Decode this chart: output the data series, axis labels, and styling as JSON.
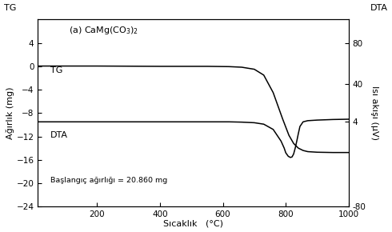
{
  "title_text": "(a) CaMg(CO$_3$)$_2$",
  "xlabel": "Sıcaklık",
  "xlabel_unit": "(°C)",
  "ylabel_left": "Ağırlık (mg)",
  "ylabel_right": "Isı akışı (μV)",
  "label_tg_left": "TG",
  "label_dta_left": "DTA",
  "label_tg_top": "TG",
  "label_dta_top": "DTA",
  "annotation": "Başlangıç ağırlığı = 20.860 mg",
  "xlim": [
    12,
    1000
  ],
  "ylim_left": [
    -24,
    8
  ],
  "xticks": [
    200,
    400,
    600,
    800,
    1000
  ],
  "yticks_left": [
    4,
    0,
    -4,
    -8,
    -12,
    -16,
    -20,
    -24
  ],
  "yticks_right_values": [
    80,
    40,
    4,
    -80
  ],
  "yticks_right_pos_left": [
    4.0,
    -3.0,
    -9.5,
    -24.0
  ],
  "line_color": "#000000",
  "bg_color": "#ffffff",
  "tg_x": [
    12,
    200,
    400,
    550,
    620,
    660,
    700,
    730,
    760,
    790,
    810,
    825,
    840,
    855,
    870,
    900,
    950,
    1000
  ],
  "tg_y": [
    0.05,
    0.05,
    0.0,
    0.0,
    -0.05,
    -0.15,
    -0.5,
    -1.5,
    -4.5,
    -9.0,
    -11.8,
    -13.2,
    -14.0,
    -14.4,
    -14.6,
    -14.7,
    -14.75,
    -14.75
  ],
  "dta_x": [
    12,
    200,
    400,
    550,
    620,
    660,
    700,
    730,
    760,
    785,
    795,
    800,
    808,
    815,
    820,
    825,
    830,
    835,
    840,
    845,
    855,
    870,
    900,
    950,
    1000
  ],
  "dta_y": [
    -9.5,
    -9.5,
    -9.5,
    -9.5,
    -9.5,
    -9.55,
    -9.65,
    -9.9,
    -10.8,
    -12.8,
    -14.0,
    -14.8,
    -15.4,
    -15.6,
    -15.5,
    -15.0,
    -14.0,
    -12.8,
    -11.5,
    -10.3,
    -9.5,
    -9.3,
    -9.2,
    -9.1,
    -9.05
  ]
}
